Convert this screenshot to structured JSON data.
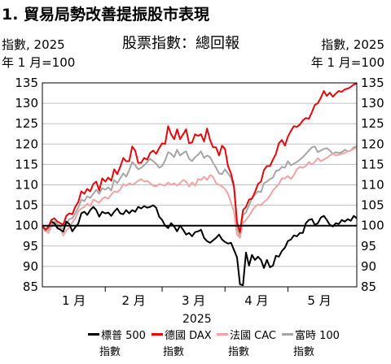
{
  "title": "1. 貿易局勢改善提振股市表現",
  "subtitle": "股票指數：總回報",
  "left_unit": [
    "指數, 2025",
    "年 1 月=100"
  ],
  "right_unit": [
    "指數, 2025",
    "年 1 月=100"
  ],
  "colors": {
    "sp500": "#000000",
    "dax": "#e8060c",
    "cac": "#f2a3a3",
    "ftse": "#a6a6a6"
  },
  "chart_data": {
    "type": "line",
    "title": "股票指數：總回報",
    "xlabel": "2025",
    "ylabel": "指數, 2025 年 1 月=100",
    "ylim": [
      85,
      135
    ],
    "yticks": [
      85,
      90,
      95,
      100,
      105,
      110,
      115,
      120,
      125,
      130,
      135
    ],
    "xticks": [
      "1 月",
      "2 月",
      "3 月",
      "4 月",
      "5 月"
    ],
    "x_range_trading_days": [
      0,
      105
    ],
    "grid": true,
    "reference_line": 100,
    "legend_placement": "bottom",
    "series": [
      {
        "name": "標普 500 指數",
        "key": "sp500",
        "values": [
          100.0,
          99.0,
          99.7,
          101.0,
          100.6,
          99.4,
          99.0,
          98.5,
          101.0,
          100.4,
          98.6,
          99.6,
          100.5,
          103.0,
          103.4,
          102.6,
          103.8,
          104.6,
          103.8,
          102.2,
          103.4,
          103.0,
          103.2,
          102.4,
          103.4,
          104.2,
          103.0,
          102.8,
          103.8,
          103.0,
          103.8,
          103.4,
          104.6,
          104.2,
          104.8,
          104.4,
          104.6,
          105.0,
          104.4,
          102.2,
          101.4,
          100.0,
          99.4,
          100.6,
          99.8,
          98.6,
          100.0,
          99.0,
          97.8,
          98.2,
          97.4,
          98.4,
          98.6,
          99.0,
          97.0,
          96.2,
          95.8,
          96.4,
          97.0,
          97.8,
          96.6,
          96.0,
          95.6,
          95.8,
          94.0,
          92.2,
          85.6,
          85.4,
          93.4,
          90.2,
          92.8,
          91.6,
          92.4,
          91.6,
          89.6,
          91.6,
          89.8,
          90.2,
          92.6,
          92.4,
          93.8,
          94.6,
          96.2,
          96.6,
          97.6,
          97.4,
          98.2,
          98.2,
          100.6,
          101.4,
          101.6,
          100.2,
          100.6,
          102.0,
          102.4,
          101.4,
          100.2,
          99.8,
          100.6,
          100.4,
          101.4,
          101.0,
          101.6,
          101.2,
          102.4,
          101.8
        ]
      },
      {
        "name": "德國 DAX 指數",
        "key": "dax",
        "values": [
          100.0,
          99.0,
          99.6,
          101.4,
          101.8,
          101.0,
          100.6,
          100.2,
          102.4,
          103.0,
          102.8,
          104.6,
          105.8,
          108.4,
          107.8,
          109.0,
          108.4,
          110.2,
          110.8,
          108.6,
          111.6,
          110.8,
          111.8,
          111.0,
          113.8,
          112.6,
          114.4,
          116.6,
          115.8,
          115.8,
          119.4,
          118.4,
          115.4,
          115.4,
          116.6,
          116.2,
          117.8,
          118.4,
          117.6,
          119.0,
          120.2,
          120.0,
          124.4,
          122.4,
          121.2,
          123.6,
          121.2,
          122.4,
          123.6,
          120.2,
          120.4,
          122.4,
          122.0,
          122.4,
          120.6,
          123.8,
          121.0,
          119.2,
          119.2,
          117.2,
          119.6,
          118.8,
          114.6,
          112.8,
          109.6,
          100.8,
          98.4,
          103.8,
          104.6,
          106.4,
          106.6,
          108.2,
          110.2,
          110.8,
          113.6,
          114.6,
          114.6,
          116.2,
          117.6,
          120.2,
          121.0,
          119.6,
          121.8,
          123.2,
          124.4,
          124.2,
          124.8,
          125.8,
          126.4,
          126.2,
          127.8,
          129.6,
          130.0,
          131.4,
          133.0,
          131.8,
          132.6,
          131.6,
          132.4,
          133.0,
          132.8,
          133.4,
          133.6,
          134.0,
          134.6,
          134.8
        ]
      },
      {
        "name": "法國 CAC 指數",
        "key": "cac",
        "values": [
          100.0,
          98.8,
          98.2,
          99.6,
          100.4,
          100.0,
          99.2,
          97.6,
          98.8,
          99.6,
          100.8,
          101.8,
          103.4,
          104.2,
          104.6,
          105.4,
          104.8,
          106.4,
          106.0,
          105.6,
          106.6,
          107.0,
          106.6,
          107.6,
          108.4,
          108.2,
          108.8,
          110.2,
          109.8,
          110.4,
          110.0,
          110.4,
          111.0,
          111.4,
          110.8,
          111.0,
          110.4,
          109.8,
          109.6,
          110.2,
          110.0,
          109.8,
          110.6,
          110.0,
          110.4,
          109.8,
          110.4,
          111.2,
          110.8,
          109.6,
          110.6,
          109.8,
          111.4,
          111.2,
          112.0,
          111.2,
          112.4,
          112.0,
          110.4,
          110.0,
          109.6,
          109.0,
          107.8,
          105.6,
          103.4,
          97.8,
          97.0,
          100.6,
          101.4,
          102.4,
          103.6,
          104.6,
          105.2,
          105.0,
          105.8,
          106.4,
          107.4,
          108.6,
          109.4,
          110.2,
          111.6,
          111.6,
          112.2,
          111.4,
          112.4,
          113.8,
          114.4,
          114.2,
          114.6,
          115.6,
          115.0,
          115.6,
          116.6,
          115.8,
          116.2,
          116.6,
          117.2,
          117.6,
          117.2,
          117.4,
          117.6,
          117.8,
          118.2,
          118.4,
          118.8,
          119.2
        ]
      },
      {
        "name": "富時 100 指數",
        "key": "ftse",
        "values": [
          100.0,
          98.6,
          99.0,
          100.0,
          101.0,
          100.4,
          99.6,
          99.2,
          100.4,
          101.6,
          101.8,
          103.0,
          104.4,
          106.4,
          106.0,
          107.2,
          106.8,
          107.8,
          108.8,
          107.8,
          109.2,
          108.8,
          109.4,
          108.6,
          111.2,
          110.4,
          111.6,
          112.8,
          112.0,
          113.6,
          115.6,
          114.8,
          113.8,
          114.2,
          114.8,
          115.6,
          116.4,
          115.8,
          115.2,
          114.2,
          114.6,
          116.0,
          118.0,
          117.6,
          116.8,
          118.6,
          117.2,
          117.8,
          118.2,
          116.4,
          115.8,
          116.8,
          117.4,
          118.2,
          116.6,
          117.2,
          116.8,
          115.4,
          114.2,
          112.8,
          112.6,
          113.8,
          112.8,
          111.8,
          109.2,
          99.8,
          97.2,
          102.6,
          103.2,
          105.0,
          106.8,
          107.6,
          108.4,
          108.2,
          110.4,
          110.8,
          111.4,
          111.8,
          113.4,
          113.6,
          114.4,
          114.2,
          115.8,
          114.8,
          115.2,
          115.6,
          116.2,
          116.8,
          117.6,
          118.4,
          119.2,
          119.4,
          118.0,
          118.4,
          118.8,
          119.0,
          118.4,
          117.6,
          118.0,
          117.8,
          118.0,
          118.6,
          118.2,
          118.4,
          119.2,
          119.4
        ]
      }
    ]
  },
  "legend": [
    {
      "key": "sp500",
      "line1": "標普 500",
      "line2": "指數"
    },
    {
      "key": "dax",
      "line1": "德國 DAX",
      "line2": "指數"
    },
    {
      "key": "cac",
      "line1": "法國 CAC",
      "line2": "指數"
    },
    {
      "key": "ftse",
      "line1": "富時 100",
      "line2": "指數"
    }
  ]
}
